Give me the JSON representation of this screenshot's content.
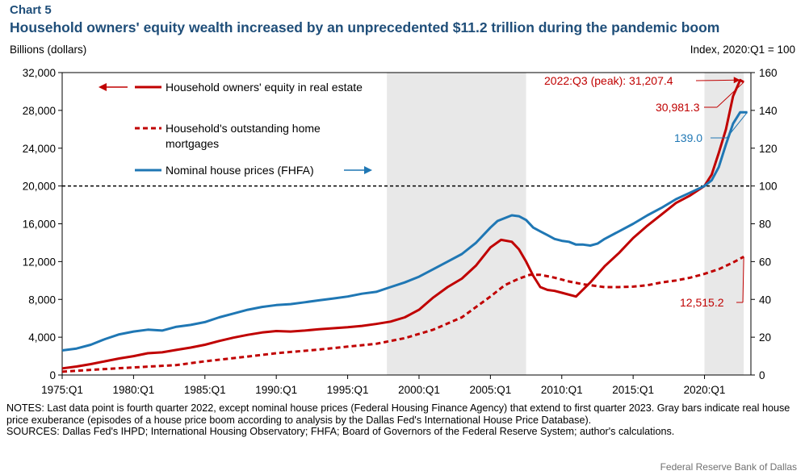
{
  "header": {
    "chart_number": "Chart 5",
    "title": "Household owners' equity wealth increased by an unprecedented $11.2 trillion during the pandemic boom"
  },
  "footer": {
    "notes": "NOTES: Last data point is fourth quarter 2022, except nominal house prices (Federal Housing Finance Agency) that extend to first quarter 2023. Gray bars indicate real house price exuberance (episodes of a house price boom according to analysis by the Dallas Fed's International House Price Database).",
    "sources": "SOURCES: Dallas Fed's IHPD; International Housing Observatory; FHFA; Board of Governors of the Federal Reserve System; author's calculations.",
    "credit": "Federal Reserve Bank of Dallas"
  },
  "colors": {
    "equity": "#c00000",
    "mortgages": "#c00000",
    "house_prices": "#1f77b4",
    "shading": "#e8e8e8",
    "title": "#1f4e79"
  },
  "chart_data": {
    "type": "line",
    "ylabel_left": "Billions (dollars)",
    "ylabel_right": "Index,  2020:Q1 = 100",
    "x_range": [
      1975.0,
      2023.25
    ],
    "x_ticks": [
      1975,
      1980,
      1985,
      1990,
      1995,
      2000,
      2005,
      2010,
      2015,
      2020
    ],
    "x_tick_labels": [
      "1975:Q1",
      "1980:Q1",
      "1985:Q1",
      "1990:Q1",
      "1995:Q1",
      "2000:Q1",
      "2005:Q1",
      "2010:Q1",
      "2015:Q1",
      "2020:Q1"
    ],
    "ylim_left": [
      0,
      32000
    ],
    "y_ticks_left": [
      0,
      4000,
      8000,
      12000,
      16000,
      20000,
      24000,
      28000,
      32000
    ],
    "y_tick_labels_left": [
      "0",
      "4,000",
      "8,000",
      "12,000",
      "16,000",
      "20,000",
      "24,000",
      "28,000",
      "32,000"
    ],
    "ylim_right": [
      0,
      160
    ],
    "y_ticks_right": [
      0,
      20,
      40,
      60,
      80,
      100,
      120,
      140,
      160
    ],
    "y_tick_labels_right": [
      "0",
      "20",
      "40",
      "60",
      "80",
      "100",
      "120",
      "140",
      "160"
    ],
    "reference_line": {
      "axis": "right",
      "value": 100
    },
    "shaded_periods": [
      [
        1997.75,
        2007.5
      ],
      [
        2020.0,
        2022.75
      ]
    ],
    "series": [
      {
        "name": "Household owners' equity in real estate",
        "axis": "left",
        "style": "solid",
        "legend_arrow": "left",
        "x": [
          1975,
          1976,
          1977,
          1978,
          1979,
          1980,
          1981,
          1982,
          1983,
          1984,
          1985,
          1986,
          1987,
          1988,
          1989,
          1990,
          1991,
          1992,
          1993,
          1994,
          1995,
          1996,
          1997,
          1998,
          1999,
          2000,
          2001,
          2002,
          2003,
          2004,
          2005,
          2005.75,
          2006.5,
          2007,
          2007.5,
          2008,
          2008.5,
          2009,
          2009.5,
          2010,
          2011,
          2012,
          2013,
          2014,
          2015,
          2016,
          2017,
          2018,
          2019,
          2020,
          2020.5,
          2021,
          2021.5,
          2022,
          2022.5,
          2022.75
        ],
        "values": [
          700,
          900,
          1150,
          1450,
          1750,
          2000,
          2300,
          2400,
          2650,
          2900,
          3200,
          3600,
          3950,
          4250,
          4500,
          4650,
          4600,
          4700,
          4850,
          4950,
          5050,
          5200,
          5400,
          5650,
          6100,
          6900,
          8200,
          9300,
          10200,
          11600,
          13500,
          14300,
          14100,
          13300,
          12000,
          10500,
          9300,
          9000,
          8900,
          8700,
          8300,
          9800,
          11500,
          12900,
          14500,
          15800,
          17000,
          18200,
          19000,
          20000,
          21200,
          23500,
          26000,
          29500,
          31207.4,
          30981.3
        ]
      },
      {
        "name": "Household's outstanding home mortgages",
        "axis": "left",
        "style": "dashed",
        "x": [
          1975,
          1977,
          1980,
          1983,
          1985,
          1988,
          1990,
          1993,
          1995,
          1997,
          1999,
          2001,
          2003,
          2004,
          2005,
          2006,
          2007,
          2007.75,
          2008.5,
          2009.5,
          2010.5,
          2011.5,
          2013,
          2014,
          2015,
          2016,
          2017,
          2018,
          2019,
          2020,
          2021,
          2022,
          2022.75
        ],
        "values": [
          350,
          550,
          800,
          1050,
          1450,
          1950,
          2300,
          2700,
          3000,
          3300,
          3900,
          4800,
          6100,
          7200,
          8300,
          9500,
          10200,
          10600,
          10600,
          10300,
          9900,
          9600,
          9300,
          9300,
          9350,
          9500,
          9800,
          10000,
          10300,
          10700,
          11200,
          11900,
          12515.2
        ]
      },
      {
        "name": "Nominal house prices (FHFA)",
        "axis": "right",
        "style": "solid",
        "legend_arrow": "right",
        "x": [
          1975,
          1976,
          1977,
          1978,
          1979,
          1980,
          1981,
          1982,
          1983,
          1984,
          1985,
          1986,
          1987,
          1988,
          1989,
          1990,
          1991,
          1992,
          1993,
          1994,
          1995,
          1996,
          1997,
          1998,
          1999,
          2000,
          2001,
          2002,
          2003,
          2004,
          2005,
          2005.5,
          2006,
          2006.5,
          2007,
          2007.5,
          2008,
          2008.5,
          2009,
          2009.5,
          2010,
          2010.5,
          2011,
          2011.5,
          2012,
          2012.5,
          2013,
          2014,
          2015,
          2016,
          2017,
          2018,
          2019,
          2020,
          2020.5,
          2021,
          2021.5,
          2022,
          2022.5,
          2023
        ],
        "values": [
          13,
          14,
          16,
          19,
          21.5,
          23,
          24,
          23.5,
          25.5,
          26.5,
          28,
          30.5,
          32.5,
          34.5,
          36,
          37,
          37.5,
          38.5,
          39.5,
          40.5,
          41.5,
          43,
          44,
          46.5,
          49,
          52,
          56,
          60,
          64,
          70,
          78,
          81.5,
          83,
          84.5,
          84,
          82,
          78,
          76,
          74,
          72,
          71,
          70.5,
          69,
          69,
          68.5,
          69.5,
          72,
          76,
          80,
          84.5,
          88.5,
          93,
          96.5,
          100,
          103,
          110,
          122,
          133,
          139,
          139.0
        ]
      }
    ],
    "annotations": {
      "peak": "2022:Q3 (peak): 31,207.4",
      "equity_last": "30,981.3",
      "house_price_last": "139.0",
      "mortgage_last": "12,515.2"
    }
  }
}
